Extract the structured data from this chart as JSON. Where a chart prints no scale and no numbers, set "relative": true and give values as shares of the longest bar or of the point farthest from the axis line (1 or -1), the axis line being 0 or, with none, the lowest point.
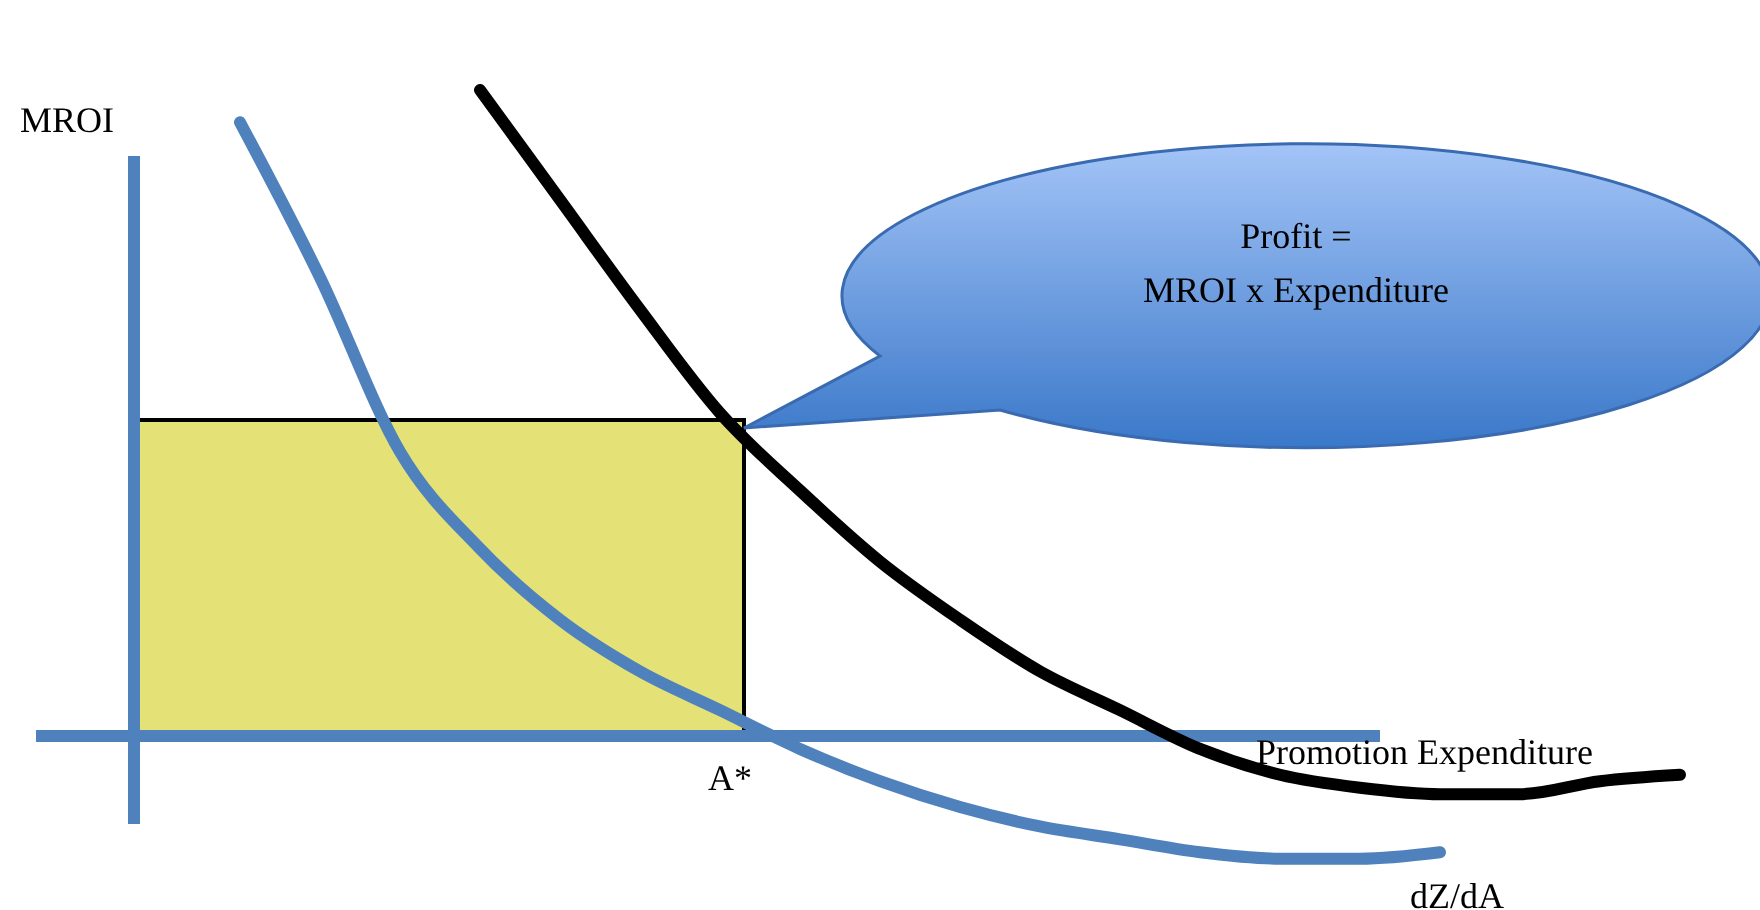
{
  "chart_data": {
    "type": "line",
    "relative": true,
    "xlabel": "Promotion Expenditure",
    "ylabel": "MROI",
    "categories": [
      null,
      null,
      null,
      null,
      null,
      null,
      null,
      null,
      null,
      null,
      null,
      null,
      null,
      null,
      null,
      null,
      null,
      null,
      null
    ],
    "series": [
      {
        "name": "dZ/dA",
        "color": "#4f81bd",
        "values": [
          0.95,
          0.71,
          0.44,
          0.29,
          0.18,
          0.1,
          0.04,
          -0.02,
          -0.07,
          -0.11,
          -0.14,
          -0.16,
          -0.18,
          -0.19,
          -0.19,
          -0.18,
          null,
          null,
          null
        ]
      },
      {
        "color": "#000000",
        "values": [
          null,
          null,
          null,
          1,
          0.83,
          0.66,
          0.5,
          0.38,
          0.27,
          0.18,
          0.1,
          0.04,
          -0.02,
          -0.06,
          -0.08,
          -0.09,
          -0.09,
          -0.07,
          -0.06
        ]
      }
    ],
    "ref_lines": [
      {
        "axis": "y",
        "value": 0,
        "color": "#4f81bd"
      }
    ],
    "annotations": [
      "Profit =",
      "MROI x Expenditure",
      "A*"
    ],
    "line_style": "solid",
    "marker": "none"
  }
}
